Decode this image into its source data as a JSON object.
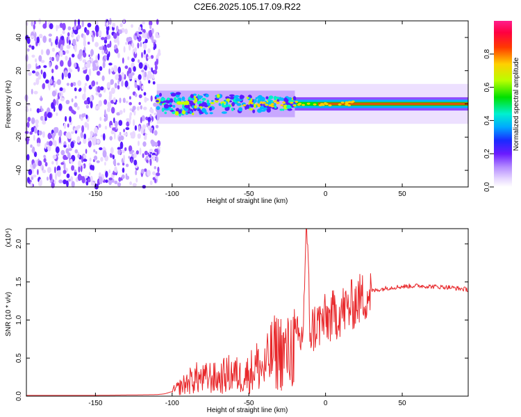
{
  "title": "C2E6.2025.105.17.09.R22",
  "colors": {
    "snr_line": "#e8272a",
    "frame": "#000000",
    "colormap": [
      "#ffffff",
      "#e9d8ff",
      "#c8a8ff",
      "#8f4dff",
      "#5a1bff",
      "#1e2bff",
      "#00b7ff",
      "#00f0c8",
      "#00e000",
      "#c8ff00",
      "#ffd000",
      "#ff4000",
      "#ff0040",
      "#ff1e8c"
    ]
  },
  "chart_data": [
    {
      "type": "heatmap",
      "xlabel": "Height of straight line (km)",
      "ylabel": "Frequency (Hz)",
      "xlim": [
        -195,
        93
      ],
      "ylim": [
        -50,
        50
      ],
      "xticks": [
        -150,
        -100,
        -50,
        0,
        50
      ],
      "yticks": [
        -40,
        -20,
        0,
        20,
        40
      ],
      "colorbar": {
        "label": "Normalized spectral amplitude",
        "range": [
          0,
          1
        ],
        "ticks": [
          0.0,
          0.2,
          0.4,
          0.6,
          0.8
        ],
        "tick_labels": [
          "0.0",
          "0.2",
          "0.4",
          "0.6",
          "0.8"
        ]
      },
      "regions": [
        {
          "label": "noise",
          "x": [
            -195,
            -110
          ],
          "y": [
            -50,
            50
          ],
          "amplitude": 0.1
        },
        {
          "label": "transition",
          "x": [
            -110,
            -20
          ],
          "y": [
            -8,
            8
          ],
          "amplitude": 0.45
        },
        {
          "label": "stable",
          "x": [
            -20,
            93
          ],
          "y": [
            -3,
            3
          ],
          "amplitude": 0.7
        }
      ]
    },
    {
      "type": "line",
      "xlabel": "Height of straight line (km)",
      "ylabel": "SNR (10 * v/v)",
      "y_multiplier": "(x10⁴)",
      "xlim": [
        -195,
        93
      ],
      "ylim": [
        0,
        2.2
      ],
      "xticks": [
        -150,
        -100,
        -50,
        0,
        50
      ],
      "yticks": [
        0.0,
        0.5,
        1.0,
        1.5,
        2.0
      ],
      "ytick_labels": [
        "0.0",
        "0.5",
        "1.0",
        "1.5",
        "2.0"
      ],
      "series": [
        {
          "x": [
            -195,
            -150,
            -110,
            -105,
            -100,
            -95,
            -90,
            -85,
            -80,
            -75,
            -70,
            -65,
            -60,
            -55,
            -50,
            -45,
            -40,
            -35,
            -30,
            -25,
            -20,
            -15,
            -12.5,
            -10,
            -5,
            0,
            5,
            10,
            15,
            20,
            25,
            30,
            35,
            40,
            50,
            60,
            70,
            80,
            93
          ],
          "values": [
            0.01,
            0.01,
            0.02,
            0.03,
            0.06,
            0.12,
            0.18,
            0.24,
            0.22,
            0.25,
            0.22,
            0.28,
            0.3,
            0.25,
            0.3,
            0.4,
            0.35,
            0.55,
            0.6,
            0.55,
            0.7,
            0.75,
            2.2,
            0.85,
            0.95,
            1.0,
            1.05,
            1.12,
            1.15,
            1.25,
            1.3,
            1.38,
            1.4,
            1.42,
            1.44,
            1.45,
            1.44,
            1.43,
            1.4
          ]
        }
      ]
    }
  ]
}
